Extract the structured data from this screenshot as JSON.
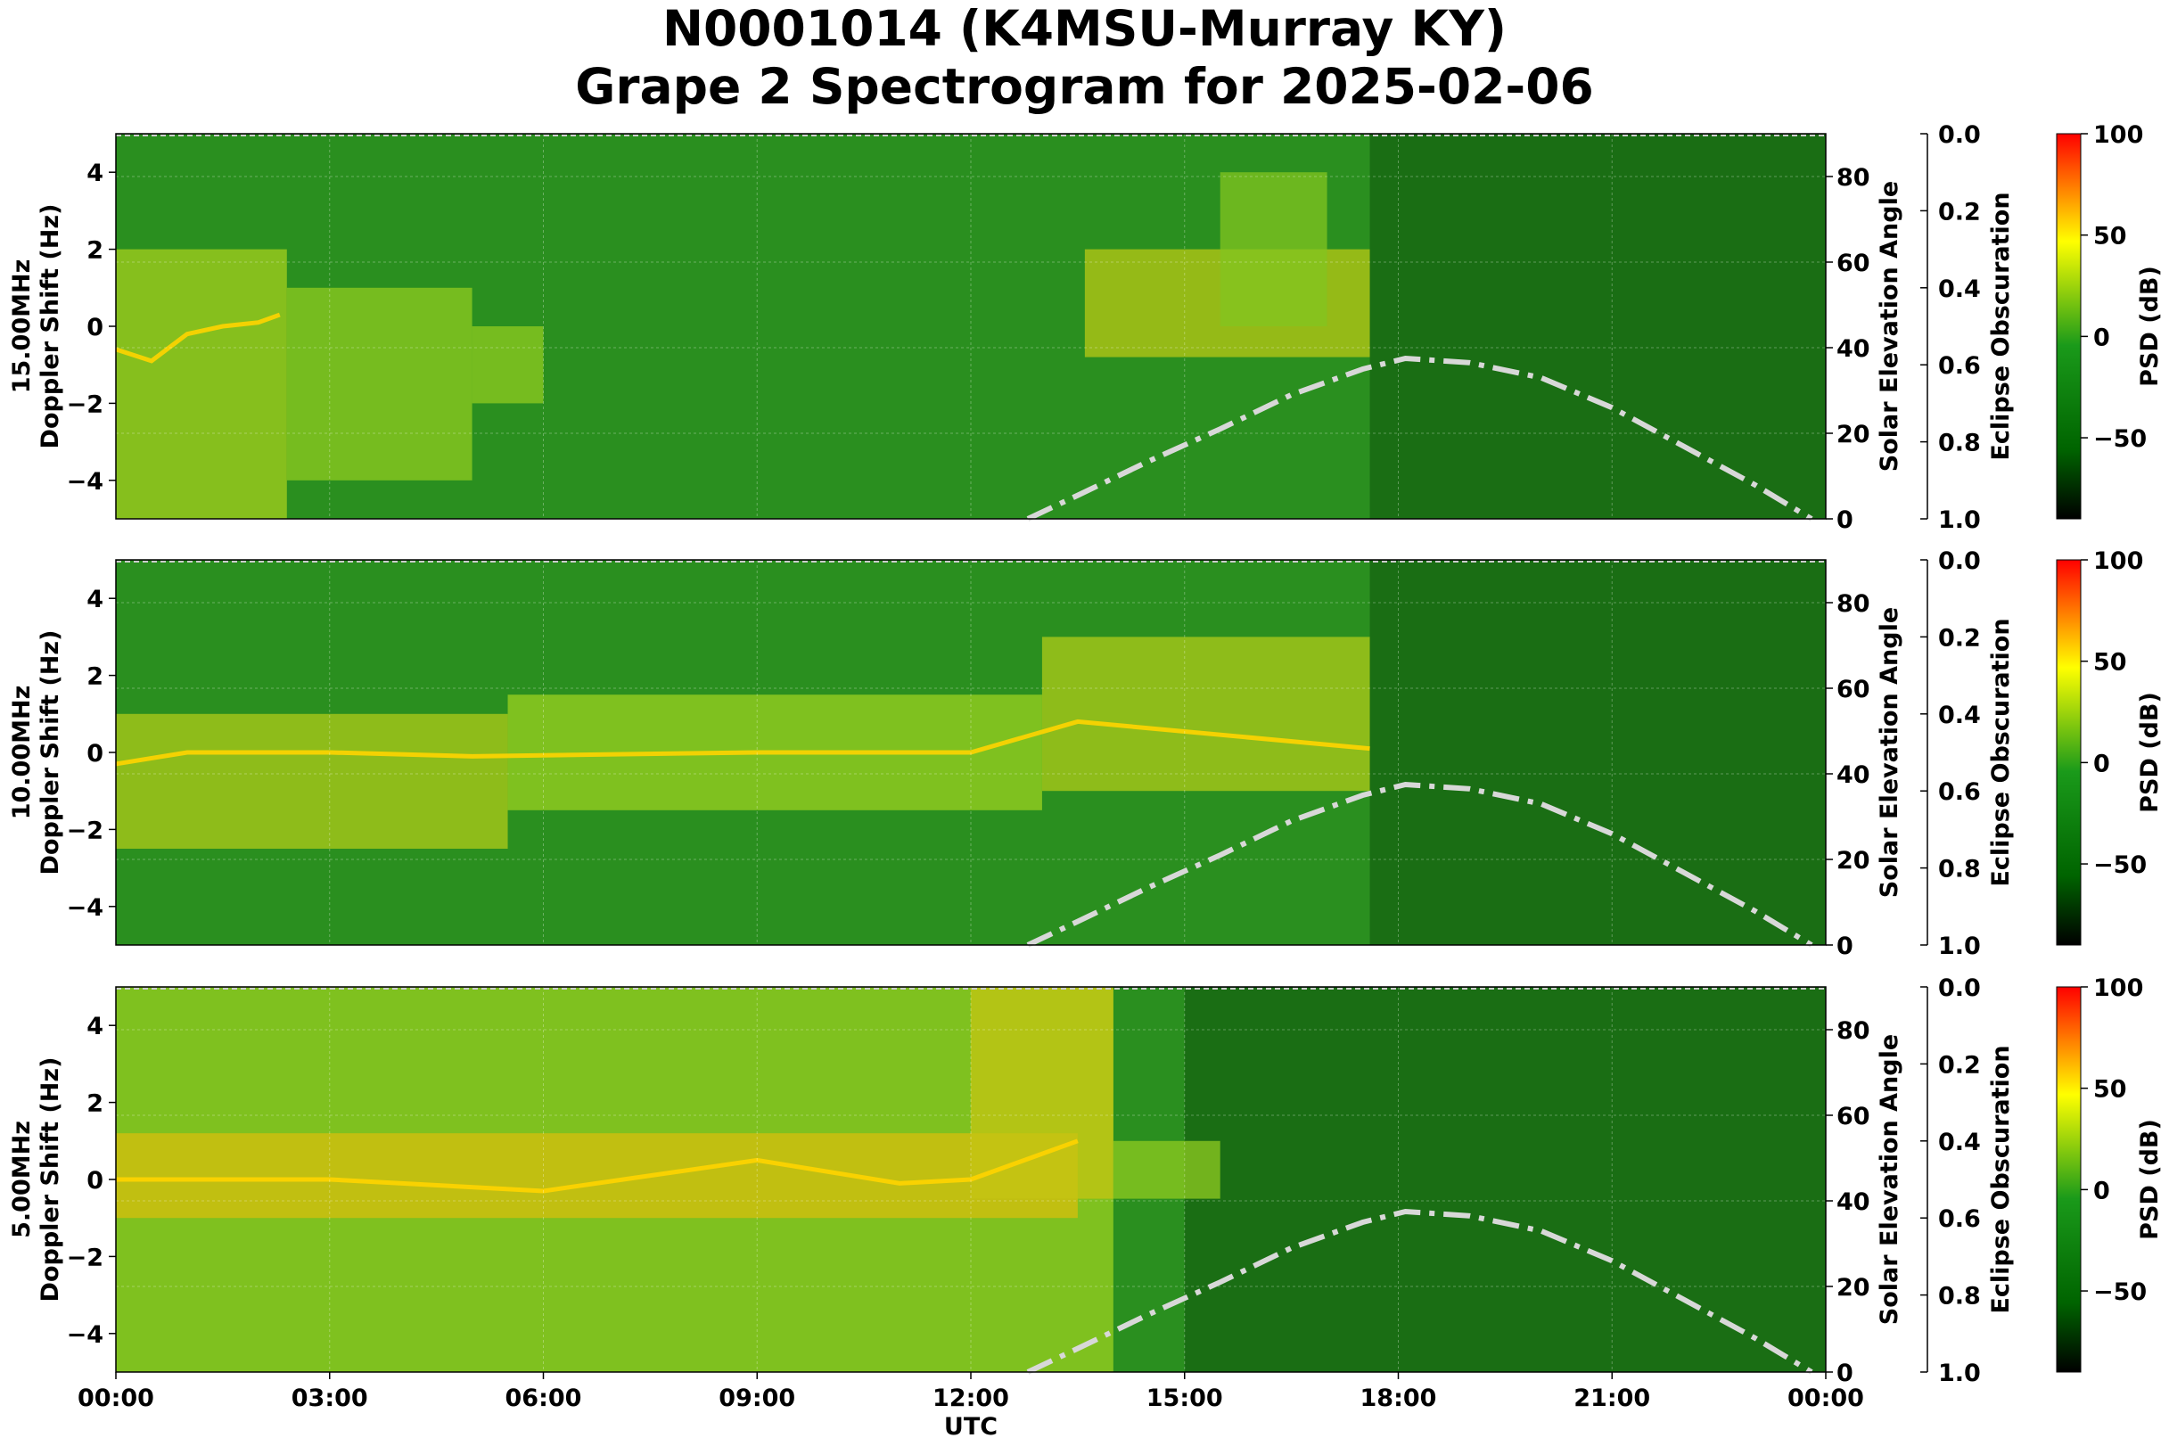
{
  "title_line1": "N0001014 (K4MSU-Murray KY)",
  "title_line2": "Grape 2 Spectrogram for 2025-02-06",
  "chart_data": {
    "type": "heatmap",
    "xlabel": "UTC",
    "x_ticks": [
      "00:00",
      "03:00",
      "06:00",
      "09:00",
      "12:00",
      "15:00",
      "18:00",
      "21:00",
      "00:00"
    ],
    "y_label": "Doppler Shift (Hz)",
    "ylim": [
      -5,
      5
    ],
    "y_ticks": [
      -4,
      -2,
      0,
      2,
      4
    ],
    "y_tick_labels": [
      "−4",
      "−2",
      "0",
      "2",
      "4"
    ],
    "solar_axis_label": "Solar Elevation Angle",
    "solar_ylim": [
      0,
      90
    ],
    "solar_ticks": [
      "0",
      "20",
      "40",
      "60",
      "80"
    ],
    "eclipse_axis_label": "Eclipse Obscuration",
    "eclipse_ticks": [
      "0.0",
      "0.2",
      "0.4",
      "0.6",
      "0.8",
      "1.0"
    ],
    "colorbar_label": "PSD (dB)",
    "colorbar_range": [
      -90,
      100
    ],
    "colorbar_ticks": [
      "100",
      "50",
      "0",
      "−50"
    ],
    "colorbar_tick_values": [
      100,
      50,
      0,
      -50
    ],
    "colorbar_colors": [
      "#000000",
      "#006400",
      "#1a9a1a",
      "#ffff00",
      "#ff0000"
    ],
    "solar_elevation_curve": {
      "style": "dash-dot",
      "color": "#d8d8d8",
      "hours": [
        12.8,
        13.5,
        14.5,
        15.5,
        16.5,
        17.5,
        18.1,
        19,
        20,
        21,
        22,
        23,
        23.8
      ],
      "degrees": [
        0,
        5.5,
        13.5,
        21,
        29,
        35,
        37.5,
        36.5,
        33,
        26,
        17,
        8,
        0
      ]
    },
    "panels": [
      {
        "label": "15.00MHz",
        "carrier_points": [
          [
            0,
            -0.6
          ],
          [
            0.5,
            -0.9
          ],
          [
            1,
            -0.2
          ],
          [
            1.5,
            0
          ],
          [
            2,
            0.1
          ],
          [
            2.3,
            0.3
          ]
        ],
        "bright_regions": [
          {
            "t0": 0.0,
            "t1": 2.4,
            "f0": -5,
            "f1": 2,
            "level": 0.55
          },
          {
            "t0": 2.4,
            "t1": 5.0,
            "f0": -4,
            "f1": 1,
            "level": 0.45
          },
          {
            "t0": 5.0,
            "t1": 6.0,
            "f0": -2,
            "f1": 0,
            "level": 0.45
          },
          {
            "t0": 13.6,
            "t1": 17.6,
            "f0": -0.8,
            "f1": 2,
            "level": 0.65
          },
          {
            "t0": 15.5,
            "t1": 17.0,
            "f0": 0,
            "f1": 4,
            "level": 0.4
          }
        ],
        "dark_after": 17.6
      },
      {
        "label": "10.00MHz",
        "carrier_points": [
          [
            0,
            -0.3
          ],
          [
            1,
            0
          ],
          [
            3,
            0
          ],
          [
            5,
            -0.1
          ],
          [
            9,
            0
          ],
          [
            12,
            0
          ],
          [
            13.5,
            0.8
          ],
          [
            17.6,
            0.1
          ]
        ],
        "bright_regions": [
          {
            "t0": 0.0,
            "t1": 5.5,
            "f0": -2.5,
            "f1": 1,
            "level": 0.6
          },
          {
            "t0": 5.5,
            "t1": 13.0,
            "f0": -1.5,
            "f1": 1.5,
            "level": 0.5
          },
          {
            "t0": 13.0,
            "t1": 17.6,
            "f0": -1,
            "f1": 3,
            "level": 0.6
          }
        ],
        "dark_after": 17.6
      },
      {
        "label": "5.00MHz",
        "carrier_points": [
          [
            0,
            0
          ],
          [
            3,
            0
          ],
          [
            6,
            -0.3
          ],
          [
            9,
            0.5
          ],
          [
            11,
            -0.1
          ],
          [
            12,
            0
          ],
          [
            13.5,
            1
          ]
        ],
        "bright_regions": [
          {
            "t0": 0.0,
            "t1": 14.0,
            "f0": -5,
            "f1": 5,
            "level": 0.5
          },
          {
            "t0": 0.0,
            "t1": 13.5,
            "f0": -1,
            "f1": 1.2,
            "level": 0.8
          },
          {
            "t0": 12.0,
            "t1": 14.0,
            "f0": -0.5,
            "f1": 5,
            "level": 0.7
          },
          {
            "t0": 14.0,
            "t1": 15.5,
            "f0": -0.5,
            "f1": 1,
            "level": 0.45
          }
        ],
        "dark_after": 15.0
      }
    ]
  }
}
